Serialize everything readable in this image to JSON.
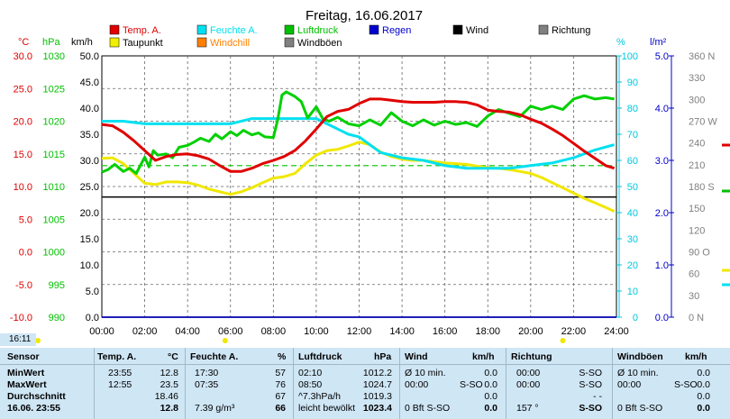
{
  "chart_data": {
    "type": "line",
    "title": "Freitag, 16.06.2017",
    "x_ticks": [
      "00:00",
      "02:00",
      "04:00",
      "06:00",
      "08:00",
      "10:00",
      "12:00",
      "14:00",
      "16:00",
      "18:00",
      "20:00",
      "22:00",
      "24:00"
    ],
    "xlim": [
      0,
      24
    ],
    "axes": {
      "temp": {
        "unit": "°C",
        "ticks": [
          "30.0",
          "25.0",
          "20.0",
          "15.0",
          "10.0",
          "5.0",
          "0.0",
          "-5.0",
          "-10.0"
        ],
        "range": [
          -10,
          30
        ],
        "color": "#e00000"
      },
      "pressure": {
        "unit": "hPa",
        "ticks": [
          "1030",
          "1025",
          "1020",
          "1015",
          "1010",
          "1005",
          "1000",
          "995",
          "990"
        ],
        "range": [
          990,
          1030
        ],
        "color": "#00c000"
      },
      "wind": {
        "unit": "km/h",
        "ticks": [
          "50.0",
          "45.0",
          "40.0",
          "35.0",
          "30.0",
          "25.0",
          "20.0",
          "15.0",
          "10.0",
          "5.0",
          "0.0"
        ],
        "range": [
          0,
          50
        ],
        "color": "#000000"
      },
      "humidity": {
        "unit": "%",
        "ticks": [
          "100",
          "90",
          "80",
          "70",
          "60",
          "50",
          "40",
          "30",
          "20",
          "10",
          "0"
        ],
        "range": [
          0,
          100
        ],
        "color": "#00c8e0"
      },
      "rain": {
        "unit": "l/m²",
        "ticks": [
          "5.0",
          "4.0",
          "3.0",
          "2.0",
          "1.0",
          "0.0"
        ],
        "range": [
          0,
          5
        ],
        "color": "#0000cc"
      },
      "direction": {
        "ticks": [
          "360 N",
          "330",
          "300",
          "270 W",
          "240",
          "210",
          "180 S",
          "150",
          "120",
          "90 O",
          "60",
          "30",
          "0 N"
        ],
        "range": [
          0,
          360
        ]
      }
    },
    "legend": [
      {
        "label": "Temp. A.",
        "color": "#e00000"
      },
      {
        "label": "Feuchte A.",
        "color": "#00e0f0"
      },
      {
        "label": "Luftdruck",
        "color": "#00c000"
      },
      {
        "label": "Regen",
        "color": "#0000cc"
      },
      {
        "label": "Wind",
        "color": "#000000"
      },
      {
        "label": "Richtung",
        "color": "#808080"
      },
      {
        "label": "Taupunkt",
        "color": "#f0f000"
      },
      {
        "label": "Windchill",
        "color": "#ff8000"
      },
      {
        "label": "Windböen",
        "color": "#808080"
      }
    ],
    "series": [
      {
        "name": "Temp. A.",
        "axis": "temp",
        "color": "#e00000",
        "x": [
          0,
          0.5,
          1,
          1.5,
          2,
          2.5,
          3,
          3.5,
          4,
          4.5,
          5,
          5.5,
          6,
          6.5,
          7,
          7.5,
          8,
          8.5,
          9,
          9.5,
          10,
          10.5,
          11,
          11.5,
          12,
          12.5,
          13,
          13.5,
          14,
          14.5,
          15,
          15.5,
          16,
          16.5,
          17,
          17.5,
          18,
          18.5,
          19,
          19.5,
          20,
          20.5,
          21,
          21.5,
          22,
          22.5,
          23,
          23.5,
          23.9
        ],
        "y": [
          19.5,
          19.3,
          18.3,
          17.0,
          15.5,
          14.0,
          14.6,
          14.9,
          15.0,
          14.7,
          14.2,
          13.2,
          12.3,
          12.3,
          12.8,
          13.5,
          14.0,
          14.6,
          15.5,
          17.0,
          18.8,
          20.7,
          21.5,
          21.8,
          22.7,
          23.4,
          23.4,
          23.2,
          23.0,
          22.9,
          22.9,
          22.9,
          23.0,
          23.0,
          22.9,
          22.5,
          21.7,
          21.5,
          21.4,
          21.0,
          20.3,
          19.7,
          18.8,
          17.8,
          16.6,
          15.4,
          14.3,
          13.2,
          12.8
        ]
      },
      {
        "name": "Taupunkt",
        "axis": "temp",
        "color": "#f0e800",
        "x": [
          0,
          0.5,
          1,
          1.5,
          2,
          2.5,
          3,
          3.5,
          4,
          4.5,
          5,
          5.5,
          6,
          6.5,
          7,
          7.5,
          8,
          8.5,
          9,
          9.5,
          10,
          10.5,
          11,
          11.5,
          12,
          12.5,
          13,
          13.5,
          14,
          14.5,
          15,
          15.5,
          16,
          16.5,
          17,
          17.5,
          18,
          18.5,
          19,
          19.5,
          20,
          20.5,
          21,
          21.5,
          22,
          22.5,
          23,
          23.5,
          23.9
        ],
        "y": [
          14.3,
          14.4,
          13.5,
          12.0,
          10.5,
          10.3,
          10.7,
          10.7,
          10.6,
          10.2,
          9.6,
          9.2,
          8.8,
          9.2,
          9.8,
          10.6,
          11.3,
          11.5,
          12.0,
          13.5,
          14.8,
          15.5,
          15.7,
          16.2,
          16.8,
          16.4,
          15.3,
          14.6,
          14.2,
          14.0,
          14.0,
          13.8,
          13.6,
          13.5,
          13.4,
          13.1,
          12.9,
          12.8,
          12.6,
          12.3,
          12.0,
          11.4,
          10.6,
          9.8,
          9.0,
          8.2,
          7.5,
          6.8,
          6.2
        ]
      },
      {
        "name": "Feuchte A.",
        "axis": "humidity",
        "color": "#00e0f0",
        "x": [
          0,
          1,
          2,
          3,
          4,
          5,
          6,
          7,
          8,
          9,
          10,
          10.5,
          11,
          11.5,
          12,
          13,
          14,
          15,
          16,
          17,
          18,
          19,
          20,
          21,
          22,
          23,
          23.9
        ],
        "y": [
          75,
          75,
          74,
          74,
          74,
          74,
          74,
          76,
          76,
          76,
          76,
          74,
          72,
          70,
          69,
          63,
          61,
          60,
          58,
          57,
          57,
          57,
          58,
          59,
          61,
          64,
          66
        ]
      },
      {
        "name": "Luftdruck",
        "axis": "pressure",
        "color": "#00d000",
        "x": [
          0,
          0.3,
          0.6,
          1,
          1.3,
          1.6,
          2,
          2.2,
          2.4,
          2.6,
          3,
          3.3,
          3.6,
          4,
          4.3,
          4.6,
          5,
          5.3,
          5.6,
          6,
          6.3,
          6.6,
          7,
          7.3,
          7.6,
          8,
          8.2,
          8.4,
          8.6,
          9,
          9.3,
          9.6,
          10,
          10.3,
          10.6,
          11,
          11.5,
          12,
          12.5,
          13,
          13.5,
          14,
          14.5,
          15,
          15.5,
          16,
          16.5,
          17,
          17.5,
          18,
          18.5,
          19,
          19.5,
          20,
          20.5,
          21,
          21.5,
          22,
          22.5,
          23,
          23.5,
          23.9
        ],
        "y": [
          1012.2,
          1012.6,
          1013.4,
          1012.3,
          1012.8,
          1012.0,
          1014.5,
          1013.0,
          1015.5,
          1014.8,
          1015.0,
          1014.4,
          1016.0,
          1016.3,
          1016.8,
          1017.4,
          1016.9,
          1018.0,
          1017.3,
          1018.4,
          1017.8,
          1018.6,
          1017.9,
          1018.2,
          1017.6,
          1017.5,
          1020.2,
          1024.0,
          1024.5,
          1023.8,
          1023.0,
          1020.5,
          1022.2,
          1020.4,
          1020.0,
          1020.6,
          1019.6,
          1019.3,
          1020.2,
          1019.4,
          1021.3,
          1020.0,
          1019.3,
          1020.2,
          1019.4,
          1020.0,
          1019.5,
          1019.8,
          1019.2,
          1020.8,
          1021.8,
          1021.2,
          1020.7,
          1022.3,
          1021.8,
          1022.3,
          1021.8,
          1023.4,
          1023.9,
          1023.4,
          1023.6,
          1023.4
        ]
      },
      {
        "name": "Wind",
        "axis": "wind",
        "color": "#000000",
        "x": [
          0,
          24
        ],
        "y": [
          0,
          0
        ]
      },
      {
        "name": "Regen",
        "axis": "rain",
        "color": "#0000cc",
        "x": [
          0,
          24
        ],
        "y": [
          0,
          0
        ]
      }
    ],
    "reference_lines": [
      {
        "axis": "temp",
        "y": 13.2,
        "style": "dashed",
        "color": "#00c000"
      },
      {
        "axis": "temp",
        "y": 8.4,
        "style": "solid",
        "color": "#000000"
      }
    ],
    "grid": true
  },
  "table": {
    "time_badge": "16:11",
    "headers": {
      "sensor": "Sensor",
      "temp": "Temp. A.",
      "temp_unit": "°C",
      "hum": "Feuchte A.",
      "hum_unit": "%",
      "pres": "Luftdruck",
      "pres_unit": "hPa",
      "wind": "Wind",
      "wind_unit": "km/h",
      "dir": "Richtung",
      "gust": "Windböen",
      "gust_unit": "km/h"
    },
    "rows": [
      {
        "label": "MinWert",
        "temp_t": "23:55",
        "temp_v": "12.8",
        "hum_t": "17:30",
        "hum_v": "57",
        "pres_t": "02:10",
        "pres_v": "1012.2",
        "wind_t": "Ø 10 min.",
        "wind_d": "",
        "wind_v": "0.0",
        "dir_t": "00:00",
        "dir_v": "S-SO",
        "gust_t": "Ø 10 min.",
        "gust_d": "",
        "gust_v": "0.0"
      },
      {
        "label": "MaxWert",
        "temp_t": "12:55",
        "temp_v": "23.5",
        "hum_t": "07:35",
        "hum_v": "76",
        "pres_t": "08:50",
        "pres_v": "1024.7",
        "wind_t": "00:00",
        "wind_d": "S-SO",
        "wind_v": "0.0",
        "dir_t": "00:00",
        "dir_v": "S-SO",
        "gust_t": "00:00",
        "gust_d": "S-SO",
        "gust_v": "0.0"
      },
      {
        "label": "Durchschnitt",
        "temp_t": "",
        "temp_v": "18.46",
        "hum_t": "",
        "hum_v": "67",
        "pres_t": "^7.3hPa/h",
        "pres_v": "1019.3",
        "wind_t": "",
        "wind_d": "",
        "wind_v": "0.0",
        "dir_t": "",
        "dir_v": "- -",
        "gust_t": "",
        "gust_d": "",
        "gust_v": "0.0"
      },
      {
        "label": "16.06. 23:55",
        "temp_t": "",
        "temp_v": "12.8",
        "hum_t": "7.39 g/m³",
        "hum_v": "66",
        "pres_t": "leicht bewölkt",
        "pres_v": "1023.4",
        "wind_t": "0 Bft S-SO",
        "wind_d": "",
        "wind_v": "0.0",
        "dir_t": "157 °",
        "dir_v": "S-SO",
        "gust_t": "0 Bft S-SO",
        "gust_d": "",
        "gust_v": "0.0"
      }
    ]
  }
}
